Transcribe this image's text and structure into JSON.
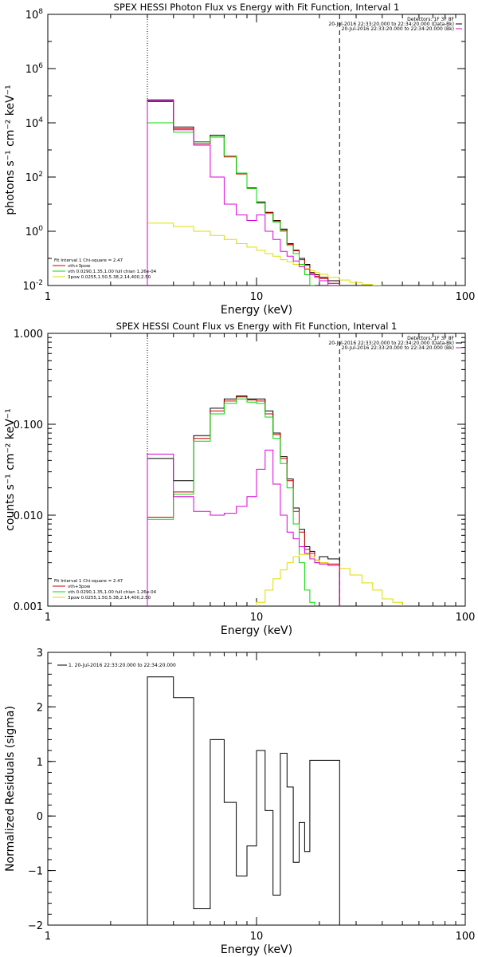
{
  "colors": {
    "data": "#000000",
    "total_fit": "#cc0000",
    "vth_component": "#00dd00",
    "3pow_component": "#dddd00",
    "background": "#dd00dd"
  },
  "chart_data": [
    {
      "type": "line",
      "title": "SPEX HESSI Photon Flux vs Energy with Fit Function, Interval 1",
      "xlabel": "Energy (keV)",
      "ylabel": "photons s⁻¹ cm⁻² keV⁻¹",
      "xscale": "log",
      "yscale": "log",
      "xlim": [
        1,
        100
      ],
      "ylim": [
        0.01,
        100000000
      ],
      "xticks": [
        "1",
        "10",
        "100"
      ],
      "yticks": [
        {
          "base": "10",
          "exp": "-2",
          "v": 0.01
        },
        {
          "base": "10",
          "exp": "0",
          "v": 1
        },
        {
          "base": "10",
          "exp": "2",
          "v": 100
        },
        {
          "base": "10",
          "exp": "4",
          "v": 10000
        },
        {
          "base": "10",
          "exp": "6",
          "v": 1000000
        },
        {
          "base": "10",
          "exp": "8",
          "v": 100000000
        }
      ],
      "vlines": [
        {
          "x": 3,
          "style": "dotted"
        },
        {
          "x": 25,
          "style": "dashed"
        }
      ],
      "legend_topright": [
        "Detectors: 1F 3F 8F",
        "20-Jul-2016 22:33:20.000 to 22:34:20.000 (Data-Bk)",
        "20-Jul-2016 22:33:20.000 to 22:34:20.000 (Bk)"
      ],
      "legend_bottomleft": [
        "Fit Interval 1    Chi-square = 2.47",
        "vth+3pow",
        "vth 0.0290,1.35,1.00  full chian 1.26e-04",
        "3pow 0.0255,1.50,5.38,2.14,400,2.50"
      ],
      "edges": [
        3,
        4,
        5,
        6,
        7,
        8,
        9,
        10,
        11,
        12,
        13,
        14,
        15,
        16,
        17,
        18,
        19,
        20,
        22,
        25
      ],
      "series": [
        {
          "name": "Data-Bk",
          "color": "#000000",
          "values": [
            70000,
            7000,
            2000,
            3500,
            600,
            140,
            40,
            12,
            5,
            2.5,
            1.2,
            0.35,
            0.2,
            0.1,
            0.06,
            0.03,
            0.025,
            0.02,
            0.015
          ]
        },
        {
          "name": "vth+3pow",
          "color": "#cc0000",
          "values": [
            60000,
            6000,
            1700,
            3000,
            550,
            130,
            38,
            11,
            4.8,
            2.4,
            1.1,
            0.33,
            0.19,
            0.09,
            0.055,
            0.028,
            0.022,
            0.018,
            0.012
          ]
        },
        {
          "name": "vth",
          "color": "#00dd00",
          "values": [
            10000,
            4500,
            2000,
            3000,
            600,
            140,
            38,
            11,
            4.5,
            2.2,
            1.0,
            0.3,
            0.15,
            0.06,
            0.025,
            0.01
          ]
        },
        {
          "name": "3pow",
          "color": "#dddd00",
          "edges": [
            3,
            4,
            5,
            6,
            7,
            8,
            9,
            10,
            11,
            12,
            13,
            14,
            15,
            16,
            17,
            18,
            19,
            20,
            22,
            25,
            28,
            32,
            36,
            40
          ],
          "values": [
            2.0,
            1.5,
            1.0,
            0.7,
            0.5,
            0.35,
            0.26,
            0.2,
            0.15,
            0.12,
            0.09,
            0.075,
            0.06,
            0.05,
            0.042,
            0.035,
            0.03,
            0.026,
            0.02,
            0.016,
            0.013,
            0.011,
            0.01
          ]
        },
        {
          "name": "Bk",
          "color": "#dd00dd",
          "values": [
            65000,
            5500,
            1500,
            100,
            10,
            4,
            2.5,
            4,
            1,
            0.5,
            0.18,
            0.12,
            0.08,
            0.05,
            0.04,
            0.025,
            0.02,
            0.015,
            0.01
          ]
        }
      ]
    },
    {
      "type": "line",
      "title": "SPEX HESSI Count Flux vs Energy with Fit Function, Interval 1",
      "xlabel": "Energy (keV)",
      "ylabel": "counts s⁻¹ cm⁻² keV⁻¹",
      "xscale": "log",
      "yscale": "log",
      "xlim": [
        1,
        100
      ],
      "ylim": [
        0.001,
        1
      ],
      "xticks": [
        "1",
        "10",
        "100"
      ],
      "yticks": [
        {
          "label": "0.001",
          "v": 0.001
        },
        {
          "label": "0.010",
          "v": 0.01
        },
        {
          "label": "0.100",
          "v": 0.1
        },
        {
          "label": "1.000",
          "v": 1
        }
      ],
      "vlines": [
        {
          "x": 3,
          "style": "dotted"
        },
        {
          "x": 25,
          "style": "dashed"
        }
      ],
      "legend_topright": [
        "Detectors: 1F 3F 8F",
        "20-Jul-2016 22:33:20.000 to 22:34:20.000 (Data-Bk)",
        "20-Jul-2016 22:33:20.000 to 22:34:20.000 (Bk)"
      ],
      "legend_bottomleft": [
        "Fit Interval 1    Chi-square = 2.47",
        "vth+3pow",
        "vth 0.0290,1.35,1.00  full chian 1.26e-04",
        "3pow 0.0255,1.50,5.38,2.14,400,2.50"
      ],
      "edges": [
        3,
        4,
        5,
        6,
        7,
        8,
        9,
        10,
        11,
        12,
        13,
        14,
        15,
        16,
        17,
        18,
        19,
        20,
        22,
        25
      ],
      "series": [
        {
          "name": "Data-Bk",
          "color": "#000000",
          "values": [
            0.042,
            0.024,
            0.075,
            0.15,
            0.19,
            0.205,
            0.19,
            0.19,
            0.14,
            0.08,
            0.044,
            0.025,
            0.012,
            0.007,
            0.0045,
            0.004,
            0.003,
            0.0035,
            0.0033
          ]
        },
        {
          "name": "vth+3pow",
          "color": "#cc0000",
          "values": [
            0.0095,
            0.018,
            0.07,
            0.14,
            0.18,
            0.2,
            0.185,
            0.18,
            0.13,
            0.077,
            0.042,
            0.024,
            0.011,
            0.0065,
            0.0042,
            0.0038,
            0.0032,
            0.003,
            0.0029
          ]
        },
        {
          "name": "vth",
          "color": "#00dd00",
          "values": [
            0.009,
            0.017,
            0.065,
            0.13,
            0.17,
            0.19,
            0.175,
            0.17,
            0.12,
            0.07,
            0.037,
            0.02,
            0.008,
            0.003,
            0.0015,
            0.0011
          ]
        },
        {
          "name": "3pow",
          "color": "#dddd00",
          "edges": [
            10,
            11,
            12,
            13,
            14,
            15,
            16,
            17,
            18,
            19,
            20,
            22,
            25,
            28,
            32,
            36,
            40,
            45,
            50
          ],
          "values": [
            0.0011,
            0.0015,
            0.002,
            0.0025,
            0.003,
            0.0035,
            0.0037,
            0.0037,
            0.0035,
            0.0032,
            0.003,
            0.0028,
            0.0026,
            0.0022,
            0.0018,
            0.0015,
            0.0012,
            0.0011
          ]
        },
        {
          "name": "Bk",
          "color": "#dd00dd",
          "values": [
            0.047,
            0.016,
            0.011,
            0.01,
            0.0105,
            0.0125,
            0.016,
            0.032,
            0.052,
            0.022,
            0.01,
            0.0065,
            0.0055,
            0.0045,
            0.0038,
            0.0033,
            0.003,
            0.0029,
            0.0028
          ]
        }
      ]
    },
    {
      "type": "line",
      "title": "",
      "xlabel": "Energy (keV)",
      "ylabel": "Normalized Residuals (sigma)",
      "xscale": "log",
      "yscale": "linear",
      "xlim": [
        1,
        100
      ],
      "ylim": [
        -2,
        3
      ],
      "xticks": [
        "1",
        "10",
        "100"
      ],
      "yticks": [
        {
          "label": "−2",
          "v": -2
        },
        {
          "label": "−1",
          "v": -1
        },
        {
          "label": "0",
          "v": 0
        },
        {
          "label": "1",
          "v": 1
        },
        {
          "label": "2",
          "v": 2
        },
        {
          "label": "3",
          "v": 3
        }
      ],
      "legend_topright": [],
      "legend_bottomleft": [],
      "legend_topleft": "1. 20-Jul-2016 22:33:20.000 to 22:34:20.000",
      "edges": [
        3,
        4,
        5,
        6,
        7,
        8,
        9,
        10,
        11,
        12,
        13,
        14,
        15,
        16,
        17,
        18,
        19,
        20,
        22,
        25
      ],
      "series": [
        {
          "name": "1. 20-Jul-2016 22:33:20.000 to 22:34:20.000",
          "color": "#000000",
          "values": [
            2.55,
            2.17,
            -1.7,
            1.4,
            0.25,
            -1.1,
            -0.55,
            1.2,
            0.1,
            -1.45,
            1.15,
            0.53,
            -0.85,
            -0.12,
            -0.65,
            1.02,
            1.02,
            1.02,
            1.02
          ]
        }
      ]
    }
  ]
}
